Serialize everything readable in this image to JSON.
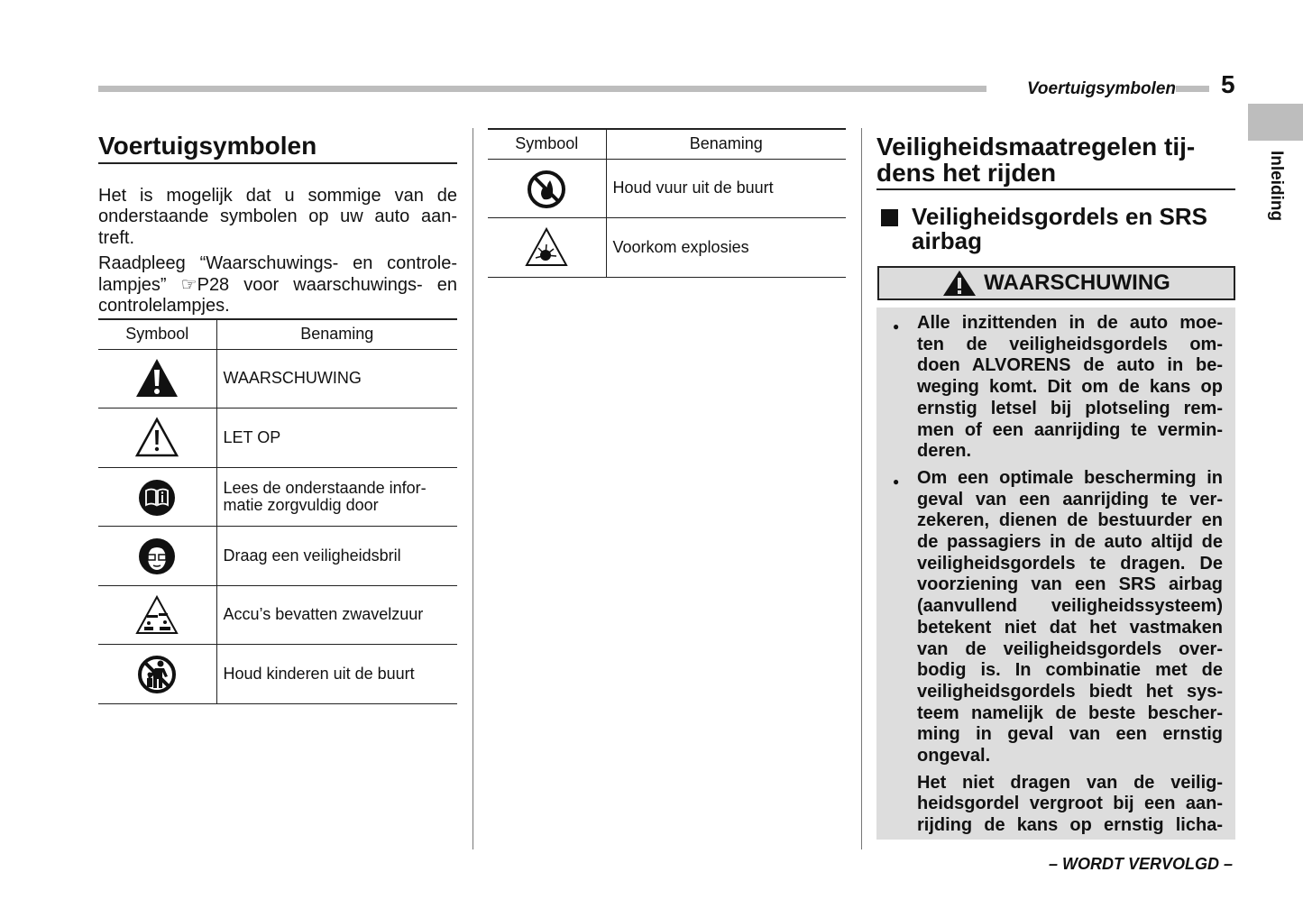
{
  "header": {
    "running_title": "Voertuigsymbolen",
    "page_number": "5",
    "side_tab": "Inleiding"
  },
  "left": {
    "title": "Voertuigsymbolen",
    "paragraphs": [
      [
        "Het is mogelijk dat u sommige van de",
        "onderstaande symbolen op uw auto aan-",
        "treft."
      ],
      [
        "Raadpleeg “Waarschuwings- en controle-",
        "lampjes” ☞P28 voor waarschuwings- en",
        "controlelampjes."
      ]
    ],
    "table": {
      "headers": [
        "Symbool",
        "Benaming"
      ],
      "rows": [
        {
          "icon": "warning-filled-triangle-icon",
          "name": [
            "WAARSCHUWING"
          ]
        },
        {
          "icon": "caution-outline-triangle-icon",
          "name": [
            "LET OP"
          ]
        },
        {
          "icon": "read-manual-icon",
          "name": [
            "Lees de onderstaande infor-",
            "matie zorgvuldig door"
          ]
        },
        {
          "icon": "safety-glasses-icon",
          "name": [
            "Draag een veiligheidsbril"
          ]
        },
        {
          "icon": "corrosive-acid-icon",
          "name": [
            "Accu’s bevatten zwavelzuur"
          ]
        },
        {
          "icon": "no-children-icon",
          "name": [
            "Houd kinderen uit de buurt"
          ]
        }
      ]
    }
  },
  "middle": {
    "table": {
      "headers": [
        "Symbool",
        "Benaming"
      ],
      "rows": [
        {
          "icon": "no-fire-icon",
          "name": [
            "Houd vuur uit de buurt"
          ]
        },
        {
          "icon": "explosion-warning-icon",
          "name": [
            "Voorkom explosies"
          ]
        }
      ]
    }
  },
  "right": {
    "title": [
      "Veiligheidsmaatregelen tij-",
      "dens het rijden"
    ],
    "subtitle": [
      "Veiligheidsgordels en SRS",
      "airbag"
    ],
    "warning_label": "WAARSCHUWING",
    "bullets": [
      [
        "Alle inzittenden in de auto moe-",
        "ten de veiligheidsgordels om-",
        "doen ALVORENS de auto in be-",
        "weging komt. Dit om de kans op",
        "ernstig letsel bij plotseling rem-",
        "men of een aanrijding te vermin-",
        "deren."
      ],
      [
        "Om een optimale bescherming in",
        "geval van een aanrijding te ver-",
        "zekeren, dienen de bestuurder en",
        "de passagiers in de auto altijd de",
        "veiligheidsgordels te dragen. De",
        "voorziening van een SRS airbag",
        "(aanvullend veiligheidssysteem)",
        "betekent niet dat het vastmaken",
        "van de veiligheidsgordels over-",
        "bodig is. In combinatie met de",
        "veiligheidsgordels biedt het sys-",
        "teem namelijk de beste bescher-",
        "ming in geval van een ernstig",
        "ongeval."
      ]
    ],
    "followup": [
      "Het niet dragen van de veilig-",
      "heidsgordel vergroot bij een aan-",
      "rijding de kans op ernstig licha-"
    ]
  },
  "footer": {
    "continued": "– WORDT VERVOLGD –"
  },
  "colors": {
    "gray_bar": "#bdbdbd",
    "warning_bg": "#dddddd"
  }
}
